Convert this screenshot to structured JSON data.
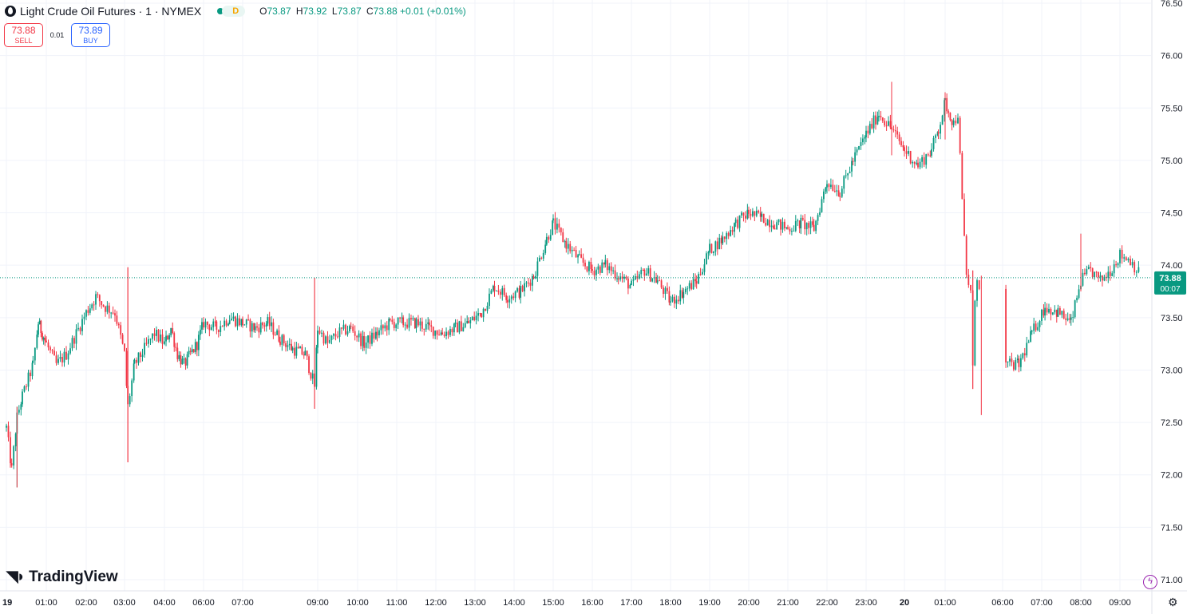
{
  "header": {
    "title": "Light Crude Oil Futures · 1 · NYMEX",
    "interval_badge": "D",
    "ohlc": {
      "o_label": "O",
      "o": "73.87",
      "h_label": "H",
      "h": "73.92",
      "l_label": "L",
      "l": "73.87",
      "c_label": "C",
      "c": "73.88",
      "change": "+0.01 (+0.01%)"
    }
  },
  "trade": {
    "sell_price": "73.88",
    "sell_label": "SELL",
    "spread": "0.01",
    "buy_price": "73.89",
    "buy_label": "BUY"
  },
  "branding": {
    "logo_text": "TradingView"
  },
  "colors": {
    "up": "#089981",
    "down": "#f23645",
    "grid": "#f0f3fa",
    "text": "#131722"
  },
  "icons": [
    "chart-symbol-icon",
    "lightning-icon",
    "settings-gear-icon"
  ],
  "chart_data": {
    "type": "candlestick",
    "symbol": "CL",
    "ylim": [
      71.0,
      76.5
    ],
    "y_ticks": [
      "71.00",
      "71.50",
      "72.00",
      "72.50",
      "73.00",
      "73.50",
      "74.00",
      "74.50",
      "75.00",
      "75.50",
      "76.00",
      "76.50"
    ],
    "x_ticks": [
      {
        "label": "19",
        "t": "19 00:00"
      },
      {
        "label": "01:00",
        "t": "19 01:00"
      },
      {
        "label": "02:00",
        "t": "19 02:00"
      },
      {
        "label": "03:00",
        "t": "19 03:00"
      },
      {
        "label": "04:00",
        "t": "19 04:00"
      },
      {
        "label": "06:00",
        "t": "19 06:00"
      },
      {
        "label": "07:00",
        "t": "19 07:00"
      },
      {
        "label": "09:00",
        "t": "19 09:00"
      },
      {
        "label": "10:00",
        "t": "19 10:00"
      },
      {
        "label": "11:00",
        "t": "19 11:00"
      },
      {
        "label": "12:00",
        "t": "19 12:00"
      },
      {
        "label": "13:00",
        "t": "19 13:00"
      },
      {
        "label": "14:00",
        "t": "19 14:00"
      },
      {
        "label": "15:00",
        "t": "19 15:00"
      },
      {
        "label": "16:00",
        "t": "19 16:00"
      },
      {
        "label": "17:00",
        "t": "19 17:00"
      },
      {
        "label": "18:00",
        "t": "19 18:00"
      },
      {
        "label": "19:00",
        "t": "19 19:00"
      },
      {
        "label": "20:00",
        "t": "19 20:00"
      },
      {
        "label": "21:00",
        "t": "19 21:00"
      },
      {
        "label": "22:00",
        "t": "19 22:00"
      },
      {
        "label": "23:00",
        "t": "19 23:00"
      },
      {
        "label": "20",
        "t": "20 00:00"
      },
      {
        "label": "01:00",
        "t": "20 01:00"
      },
      {
        "label": "06:00",
        "t": "20 06:00"
      },
      {
        "label": "07:00",
        "t": "20 07:00"
      },
      {
        "label": "08:00",
        "t": "20 08:00"
      },
      {
        "label": "09:00",
        "t": "20 09:00"
      }
    ],
    "price_path": [
      [
        "19 00:00",
        72.45
      ],
      [
        "19 00:08",
        72.05
      ],
      [
        "19 00:16",
        72.55
      ],
      [
        "19 00:24",
        72.75
      ],
      [
        "19 00:40",
        73.05
      ],
      [
        "19 00:48",
        73.45
      ],
      [
        "19 01:00",
        73.25
      ],
      [
        "19 01:15",
        73.05
      ],
      [
        "19 01:30",
        73.15
      ],
      [
        "19 01:45",
        73.35
      ],
      [
        "19 02:00",
        73.55
      ],
      [
        "19 02:15",
        73.7
      ],
      [
        "19 02:30",
        73.6
      ],
      [
        "19 02:45",
        73.55
      ],
      [
        "19 03:00",
        73.15
      ],
      [
        "19 03:05",
        72.65
      ],
      [
        "19 03:15",
        73.05
      ],
      [
        "19 03:30",
        73.2
      ],
      [
        "19 03:45",
        73.35
      ],
      [
        "19 04:00",
        73.25
      ],
      [
        "19 04:20",
        73.4
      ],
      [
        "19 04:40",
        73.15
      ],
      [
        "19 05:00",
        73.05
      ],
      [
        "19 05:20",
        73.15
      ],
      [
        "19 05:40",
        73.25
      ],
      [
        "19 06:00",
        73.45
      ],
      [
        "19 06:20",
        73.4
      ],
      [
        "19 06:40",
        73.5
      ],
      [
        "19 07:00",
        73.45
      ],
      [
        "19 07:20",
        73.4
      ],
      [
        "19 07:40",
        73.45
      ],
      [
        "19 08:00",
        73.3
      ],
      [
        "19 08:20",
        73.2
      ],
      [
        "19 08:40",
        73.15
      ],
      [
        "19 08:55",
        72.85
      ],
      [
        "19 09:00",
        73.4
      ],
      [
        "19 09:15",
        73.25
      ],
      [
        "19 09:30",
        73.35
      ],
      [
        "19 09:50",
        73.4
      ],
      [
        "19 10:10",
        73.25
      ],
      [
        "19 10:30",
        73.35
      ],
      [
        "19 10:50",
        73.45
      ],
      [
        "19 11:10",
        73.45
      ],
      [
        "19 11:30",
        73.45
      ],
      [
        "19 11:50",
        73.4
      ],
      [
        "19 12:10",
        73.35
      ],
      [
        "19 12:30",
        73.4
      ],
      [
        "19 12:50",
        73.45
      ],
      [
        "19 13:10",
        73.55
      ],
      [
        "19 13:30",
        73.8
      ],
      [
        "19 13:50",
        73.7
      ],
      [
        "19 14:10",
        73.75
      ],
      [
        "19 14:30",
        73.9
      ],
      [
        "19 14:50",
        74.25
      ],
      [
        "19 15:00",
        74.4
      ],
      [
        "19 15:20",
        74.2
      ],
      [
        "19 15:40",
        74.05
      ],
      [
        "19 16:00",
        73.95
      ],
      [
        "19 16:20",
        74.0
      ],
      [
        "19 16:40",
        73.9
      ],
      [
        "19 17:00",
        73.8
      ],
      [
        "19 17:20",
        73.95
      ],
      [
        "19 17:40",
        73.85
      ],
      [
        "19 18:00",
        73.65
      ],
      [
        "19 18:20",
        73.75
      ],
      [
        "19 18:40",
        73.85
      ],
      [
        "19 19:00",
        74.15
      ],
      [
        "19 19:20",
        74.25
      ],
      [
        "19 19:40",
        74.4
      ],
      [
        "19 20:00",
        74.5
      ],
      [
        "19 20:20",
        74.45
      ],
      [
        "19 20:40",
        74.4
      ],
      [
        "19 21:00",
        74.35
      ],
      [
        "19 21:20",
        74.4
      ],
      [
        "19 21:40",
        74.35
      ],
      [
        "19 22:00",
        74.8
      ],
      [
        "19 22:20",
        74.7
      ],
      [
        "19 22:40",
        75.0
      ],
      [
        "19 23:00",
        75.25
      ],
      [
        "19 23:20",
        75.45
      ],
      [
        "19 23:40",
        75.3
      ],
      [
        "20 00:00",
        75.1
      ],
      [
        "20 00:20",
        74.95
      ],
      [
        "20 00:40",
        75.1
      ],
      [
        "20 00:50",
        75.3
      ],
      [
        "20 01:00",
        75.55
      ],
      [
        "20 01:20",
        75.35
      ],
      [
        "20 01:30",
        75.45
      ],
      [
        "20 01:40",
        74.6
      ],
      [
        "20 01:50",
        73.9
      ],
      [
        "20 02:00",
        73.75
      ],
      [
        "20 02:05",
        73.0
      ],
      [
        "20 02:10",
        73.7
      ],
      [
        "20 02:15",
        73.9
      ],
      [
        "20 02:20",
        73.75
      ],
      [
        "20 02:25",
        73.0
      ],
      [
        "20 06:05",
        73.05
      ],
      [
        "20 06:25",
        73.05
      ],
      [
        "20 06:45",
        73.35
      ],
      [
        "20 07:05",
        73.6
      ],
      [
        "20 07:25",
        73.55
      ],
      [
        "20 07:45",
        73.45
      ],
      [
        "20 08:00",
        73.85
      ],
      [
        "20 08:15",
        73.95
      ],
      [
        "20 08:30",
        73.85
      ],
      [
        "20 08:45",
        73.95
      ],
      [
        "20 09:00",
        74.1
      ],
      [
        "20 09:15",
        74.05
      ],
      [
        "20 09:30",
        73.9
      ]
    ],
    "extremes": [
      {
        "t": "19 00:16",
        "high": 72.65,
        "low": 71.88
      },
      {
        "t": "19 03:05",
        "high": 73.98,
        "low": 72.12
      },
      {
        "t": "19 08:55",
        "high": 73.88,
        "low": 72.63
      },
      {
        "t": "19 23:40",
        "high": 75.75,
        "low": 75.05
      },
      {
        "t": "20 01:00",
        "high": 75.65,
        "low": 75.2
      },
      {
        "t": "20 02:05",
        "high": 73.95,
        "low": 72.82
      },
      {
        "t": "20 02:25",
        "high": 73.9,
        "low": 72.57
      },
      {
        "t": "20 08:00",
        "high": 74.3,
        "low": 73.75
      }
    ],
    "last_price": {
      "value": 73.88,
      "label": "73.88",
      "countdown": "00:07"
    }
  }
}
